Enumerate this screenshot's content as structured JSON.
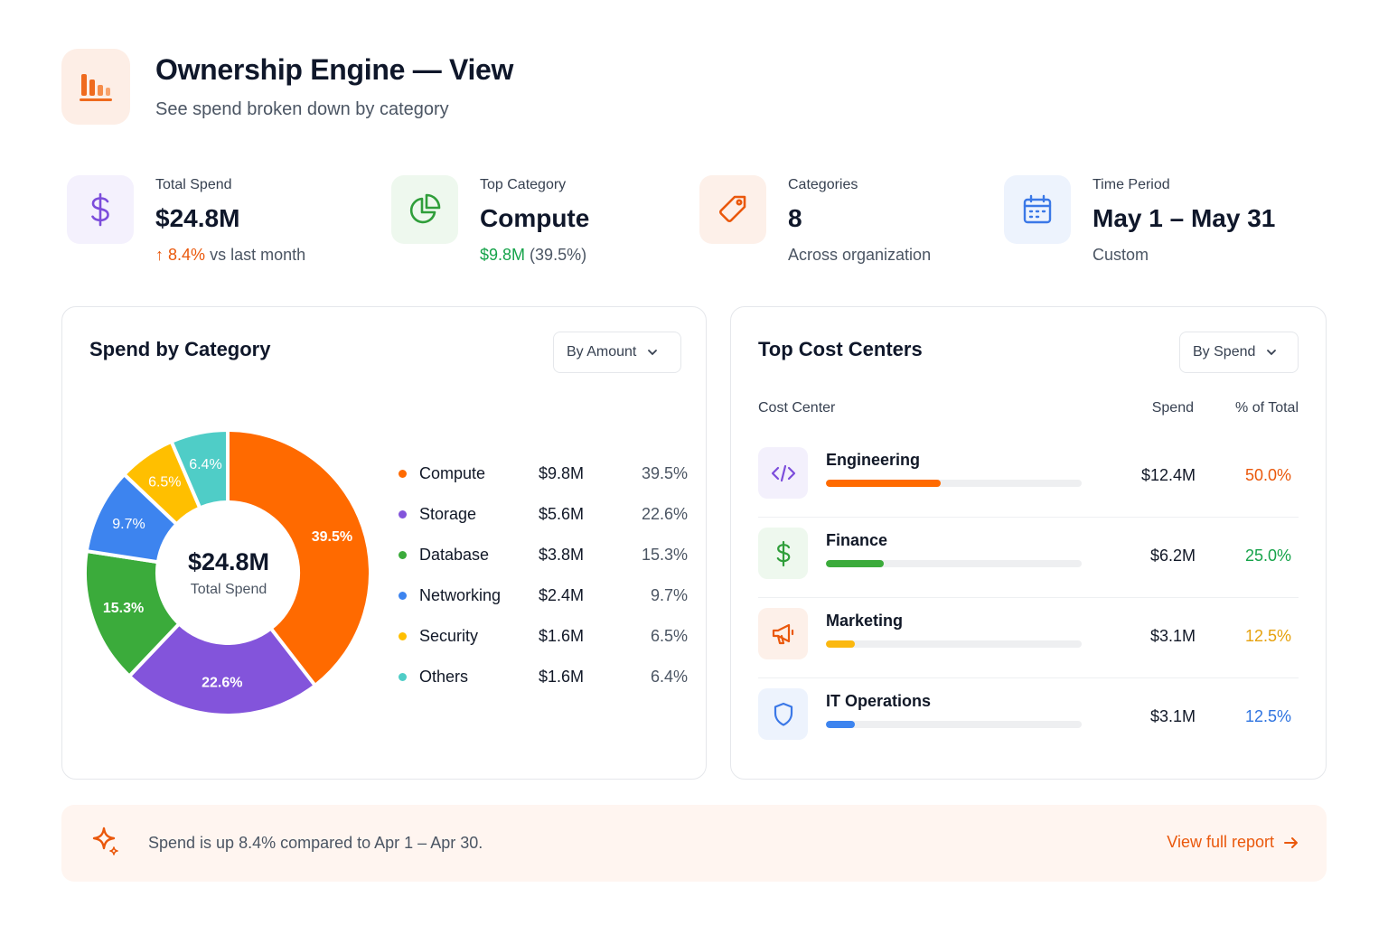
{
  "header": {
    "title": "Ownership Engine — View",
    "subtitle": "See spend broken down by category",
    "icon": "bar-chart-icon"
  },
  "kpis": [
    {
      "label": "Total Spend",
      "value": "$24.8M",
      "delta": "8.4%",
      "delta_suffix": "vs last month",
      "icon": "dollar-icon"
    },
    {
      "label": "Top Category",
      "value": "Compute",
      "sub_highlight": "$9.8M",
      "sub_rest": "(39.5%)",
      "icon": "pie-chart-icon"
    },
    {
      "label": "Categories",
      "value": "8",
      "sub": "Across organization",
      "icon": "tag-icon"
    },
    {
      "label": "Time Period",
      "value": "May 1 – May 31",
      "sub": "Custom",
      "icon": "calendar-icon"
    }
  ],
  "spend_card": {
    "title": "Spend by Category",
    "sort_label": "By Amount",
    "center_value": "$24.8M",
    "center_caption": "Total Spend"
  },
  "chart_data": {
    "type": "pie",
    "style": "donut",
    "categories": [
      "Compute",
      "Storage",
      "Database",
      "Networking",
      "Security",
      "Others"
    ],
    "values": [
      9.8,
      5.6,
      3.8,
      2.4,
      1.6,
      1.6
    ],
    "amount_labels": [
      "$9.8M",
      "$5.6M",
      "$3.8M",
      "$2.4M",
      "$1.6M",
      "$1.6M"
    ],
    "percent_labels": [
      "39.5%",
      "22.6%",
      "15.3%",
      "9.7%",
      "6.5%",
      "6.4%"
    ],
    "colors": [
      "#ff6a00",
      "#8354db",
      "#3bab3b",
      "#3d84ef",
      "#ffbf00",
      "#4fcdc7"
    ],
    "legend_placement": "right"
  },
  "cost_card": {
    "title": "Top Cost Centers",
    "sort_label": "By Spend",
    "columns": [
      "Cost Center",
      "Spend",
      "% of Total"
    ],
    "rows": [
      {
        "name": "Engineering",
        "spend": "$12.4M",
        "pct": "50.0%",
        "share": 0.5,
        "color": "#ff6a00",
        "icon_bg": "#f3f0fc",
        "icon_color": "#7c4ddb",
        "icon": "code-icon"
      },
      {
        "name": "Finance",
        "spend": "$6.2M",
        "pct": "25.0%",
        "share": 0.25,
        "color": "#3bab3b",
        "icon_bg": "#eef8ee",
        "icon_color": "#2f9e3a",
        "icon": "dollar-icon"
      },
      {
        "name": "Marketing",
        "spend": "$3.1M",
        "pct": "12.5%",
        "share": 0.125,
        "color": "#fbb80f",
        "icon_bg": "#fdf0e9",
        "icon_color": "#ea580c",
        "icon": "megaphone-icon"
      },
      {
        "name": "IT Operations",
        "spend": "$3.1M",
        "pct": "12.5%",
        "share": 0.125,
        "color": "#3d84ef",
        "icon_bg": "#edf3fd",
        "icon_color": "#3b78e7",
        "icon": "shield-icon"
      }
    ],
    "pct_colors": [
      "#ea580c",
      "#16a34a",
      "#e6a10d",
      "#2f74e0"
    ]
  },
  "banner": {
    "text": "Spend is up 8.4% compared to Apr 1 – Apr 30.",
    "link": "View full report",
    "icon": "sparkle-icon"
  },
  "colors": {
    "accent": "#ea580c",
    "positive": "#16a34a"
  }
}
